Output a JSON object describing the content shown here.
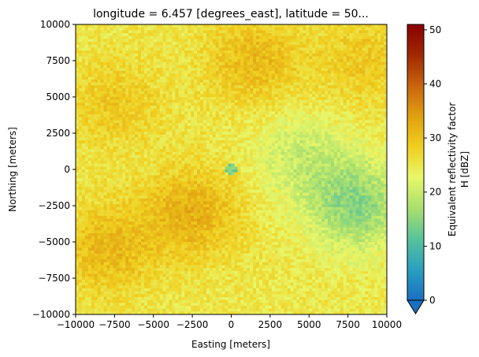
{
  "chart_data": {
    "type": "heatmap",
    "title": "longitude = 6.457 [degrees_east], latitude = 50...",
    "xlabel": "Easting [meters]",
    "ylabel": "Northing [meters]",
    "xlim": [
      -10000,
      10000
    ],
    "ylim": [
      -10000,
      10000
    ],
    "xticks": [
      -10000,
      -7500,
      -5000,
      -2500,
      0,
      2500,
      5000,
      7500,
      10000
    ],
    "yticks": [
      -10000,
      -7500,
      -5000,
      -2500,
      0,
      2500,
      5000,
      7500,
      10000
    ],
    "xtick_labels": [
      "−10000",
      "−7500",
      "−5000",
      "−2500",
      "0",
      "2500",
      "5000",
      "7500",
      "10000"
    ],
    "ytick_labels": [
      "−10000",
      "−7500",
      "−5000",
      "−2500",
      "0",
      "2500",
      "5000",
      "7500",
      "10000"
    ],
    "colorbar": {
      "label_line1": "Equivalent reflectivity factor",
      "label_line2": "H [dBZ]",
      "range": [
        0,
        51
      ],
      "extend": "min",
      "ticks": [
        0,
        10,
        20,
        30,
        40,
        50
      ],
      "tick_labels": [
        "0",
        "10",
        "20",
        "30",
        "40",
        "50"
      ],
      "colormap_stops": [
        "#1a6fc0",
        "#2a9fc0",
        "#58c39a",
        "#a9df6e",
        "#e8f76a",
        "#f0cf20",
        "#e0a010",
        "#c86410",
        "#a02800",
        "#8a0000"
      ]
    },
    "field_summary": {
      "grid_size": [
        100,
        100
      ],
      "background_dbz": 25,
      "radar_center_xy": [
        0,
        0
      ],
      "radar_center_dbz": 8,
      "features": [
        {
          "type": "high",
          "x": 1500,
          "y": 7500,
          "dbz": 31
        },
        {
          "type": "high",
          "x": -2500,
          "y": -3000,
          "dbz": 32
        },
        {
          "type": "high",
          "x": -8000,
          "y": -5500,
          "dbz": 31
        },
        {
          "type": "high",
          "x": -7500,
          "y": 4500,
          "dbz": 29
        },
        {
          "type": "high",
          "x": 8500,
          "y": 7500,
          "dbz": 29
        },
        {
          "type": "low",
          "x": 8000,
          "y": -2500,
          "dbz": 15
        },
        {
          "type": "low",
          "x": 4500,
          "y": 1000,
          "dbz": 20
        }
      ]
    }
  }
}
